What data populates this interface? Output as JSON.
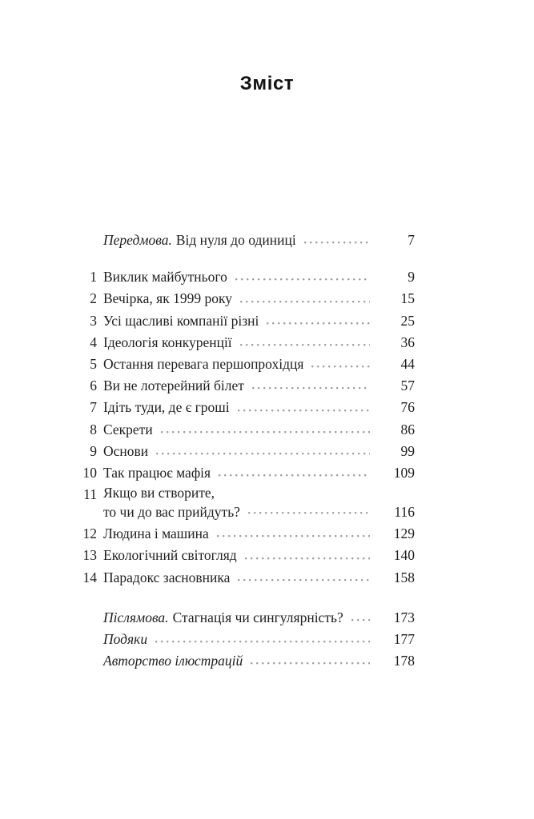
{
  "page": {
    "title": "Зміст"
  },
  "toc": {
    "front": {
      "label": "Передмова.",
      "title": "Від нуля до одиниці",
      "page": "7"
    },
    "chapters": [
      {
        "num": "1",
        "title": "Виклик майбутнього",
        "page": "9"
      },
      {
        "num": "2",
        "title": "Вечірка, як 1999 року",
        "page": "15"
      },
      {
        "num": "3",
        "title": "Усі щасливі компанії різні",
        "page": "25"
      },
      {
        "num": "4",
        "title": "Ідеологія конкуренції",
        "page": "36"
      },
      {
        "num": "5",
        "title": "Остання перевага першопрохідця",
        "page": "44"
      },
      {
        "num": "6",
        "title": "Ви не лотерейний білет",
        "page": "57"
      },
      {
        "num": "7",
        "title": "Ідіть туди, де є гроші",
        "page": "76"
      },
      {
        "num": "8",
        "title": "Секрети",
        "page": "86"
      },
      {
        "num": "9",
        "title": "Основи",
        "page": "99"
      },
      {
        "num": "10",
        "title": "Так працює мафія",
        "page": "109"
      },
      {
        "num": "11",
        "title_line1": "Якщо ви створите,",
        "title_line2": "то чи до вас прийдуть?",
        "page": "116"
      },
      {
        "num": "12",
        "title": "Людина і машина",
        "page": "129"
      },
      {
        "num": "13",
        "title": "Екологічний світогляд",
        "page": "140"
      },
      {
        "num": "14",
        "title": "Парадокс засновника",
        "page": "158"
      }
    ],
    "back": [
      {
        "label": "Післямова.",
        "title": "Стагнація чи сингулярність?",
        "page": "173"
      },
      {
        "label": "Подяки",
        "title": "",
        "page": "177"
      },
      {
        "label": "Авторство ілюстрацій",
        "title": "",
        "page": "178"
      }
    ]
  },
  "colors": {
    "text": "#1f1f1f",
    "leader_dots": "#9aa1a8",
    "background": "#ffffff"
  }
}
